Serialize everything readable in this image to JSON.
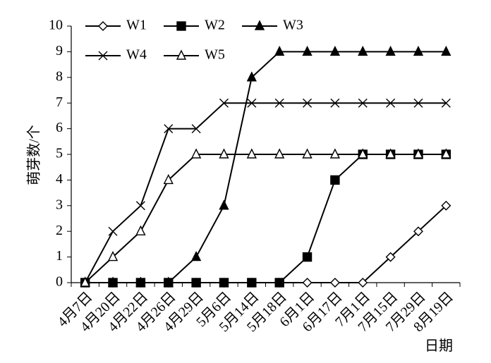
{
  "chart_data": {
    "type": "line",
    "x_label": "日期",
    "y_label": "萌芽数/个",
    "categories": [
      "4月7日",
      "4月20日",
      "4月22日",
      "4月26日",
      "4月29日",
      "5月6日",
      "5月14日",
      "5月18日",
      "6月1日",
      "6月17日",
      "7月1日",
      "7月15日",
      "7月29日",
      "8月19日"
    ],
    "series": [
      {
        "name": "W1",
        "color": "#000000",
        "marker": "diamond-open",
        "values": [
          0,
          0,
          0,
          0,
          0,
          0,
          0,
          0,
          0,
          0,
          0,
          1,
          2,
          3
        ]
      },
      {
        "name": "W2",
        "color": "#000000",
        "marker": "square",
        "values": [
          0,
          0,
          0,
          0,
          0,
          0,
          0,
          0,
          1,
          4,
          5,
          5,
          5,
          5
        ]
      },
      {
        "name": "W3",
        "color": "#000000",
        "marker": "triangle",
        "values": [
          0,
          0,
          0,
          0,
          1,
          3,
          8,
          9,
          9,
          9,
          9,
          9,
          9,
          9
        ]
      },
      {
        "name": "W4",
        "color": "#000000",
        "marker": "x",
        "values": [
          0,
          2,
          3,
          6,
          6,
          7,
          7,
          7,
          7,
          7,
          7,
          7,
          7,
          7
        ]
      },
      {
        "name": "W5",
        "color": "#000000",
        "marker": "triangle-open",
        "values": [
          0,
          1,
          2,
          4,
          5,
          5,
          5,
          5,
          5,
          5,
          5,
          5,
          5,
          5
        ]
      }
    ],
    "ylim": [
      0,
      10
    ],
    "yticks": [
      0,
      1,
      2,
      3,
      4,
      5,
      6,
      7,
      8,
      9,
      10
    ],
    "grid": false,
    "legend": "upper left"
  }
}
